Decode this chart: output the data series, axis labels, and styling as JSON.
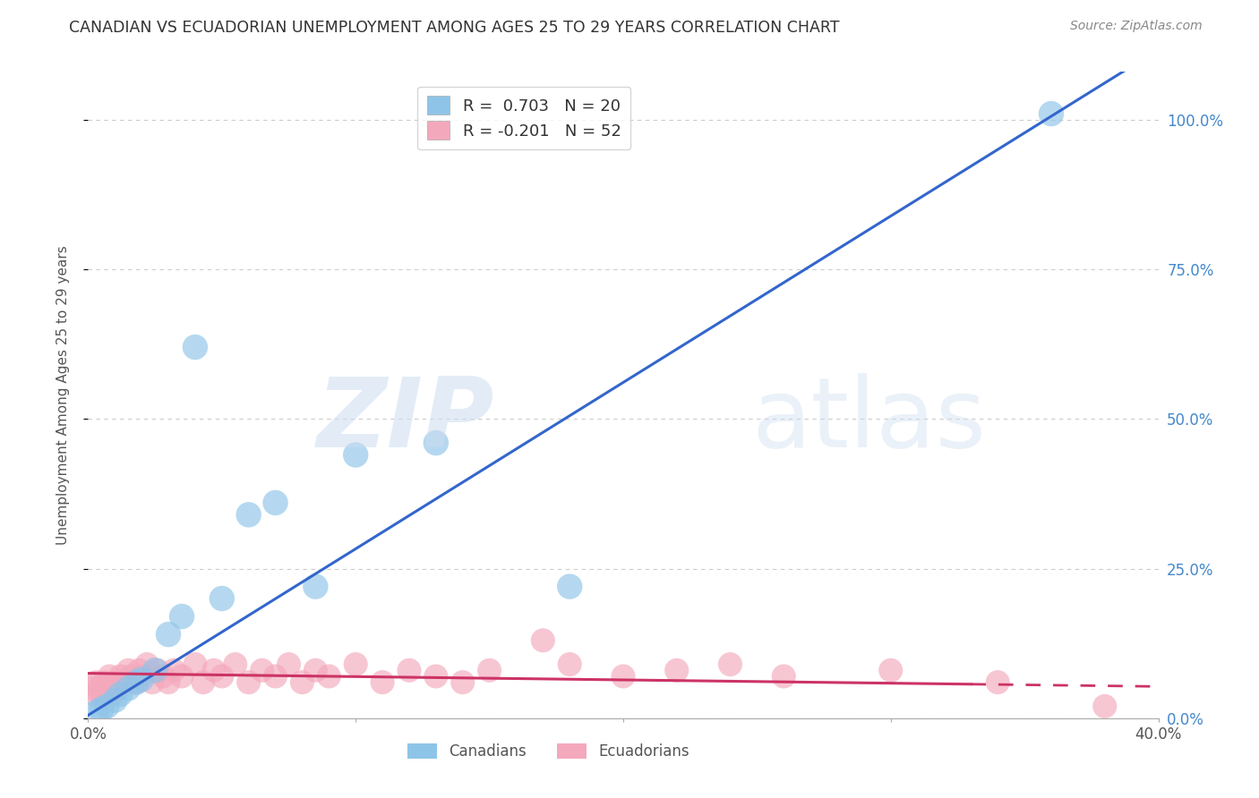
{
  "title": "CANADIAN VS ECUADORIAN UNEMPLOYMENT AMONG AGES 25 TO 29 YEARS CORRELATION CHART",
  "source": "Source: ZipAtlas.com",
  "xlim": [
    0.0,
    0.4
  ],
  "ylim": [
    -0.02,
    1.08
  ],
  "plot_ylim": [
    0.0,
    1.08
  ],
  "watermark_zip": "ZIP",
  "watermark_atlas": "atlas",
  "legend_canadian": "R =  0.703   N = 20",
  "legend_ecuadorian": "R = -0.201   N = 52",
  "canadian_color": "#8ec4e8",
  "ecuadorian_color": "#f4a8bc",
  "regression_canadian_color": "#3366cc",
  "regression_ecuadorian_color": "#cc3366",
  "can_x": [
    0.003,
    0.005,
    0.007,
    0.01,
    0.012,
    0.015,
    0.018,
    0.02,
    0.025,
    0.03,
    0.035,
    0.04,
    0.05,
    0.06,
    0.07,
    0.085,
    0.1,
    0.13,
    0.18,
    0.36
  ],
  "can_y": [
    0.01,
    0.015,
    0.02,
    0.03,
    0.04,
    0.05,
    0.06,
    0.065,
    0.08,
    0.14,
    0.17,
    0.62,
    0.2,
    0.34,
    0.36,
    0.22,
    0.44,
    0.46,
    0.22,
    1.01
  ],
  "ecu_x": [
    0.001,
    0.002,
    0.003,
    0.004,
    0.005,
    0.006,
    0.007,
    0.008,
    0.009,
    0.01,
    0.011,
    0.012,
    0.013,
    0.015,
    0.016,
    0.018,
    0.019,
    0.02,
    0.022,
    0.024,
    0.026,
    0.028,
    0.03,
    0.032,
    0.035,
    0.04,
    0.043,
    0.047,
    0.05,
    0.055,
    0.06,
    0.065,
    0.07,
    0.075,
    0.08,
    0.085,
    0.09,
    0.1,
    0.11,
    0.12,
    0.13,
    0.14,
    0.15,
    0.17,
    0.18,
    0.2,
    0.22,
    0.24,
    0.26,
    0.3,
    0.34,
    0.38
  ],
  "ecu_y": [
    0.05,
    0.04,
    0.06,
    0.05,
    0.04,
    0.06,
    0.05,
    0.07,
    0.04,
    0.06,
    0.05,
    0.07,
    0.06,
    0.08,
    0.07,
    0.06,
    0.08,
    0.07,
    0.09,
    0.06,
    0.08,
    0.07,
    0.06,
    0.08,
    0.07,
    0.09,
    0.06,
    0.08,
    0.07,
    0.09,
    0.06,
    0.08,
    0.07,
    0.09,
    0.06,
    0.08,
    0.07,
    0.09,
    0.06,
    0.08,
    0.07,
    0.06,
    0.08,
    0.13,
    0.09,
    0.07,
    0.08,
    0.09,
    0.07,
    0.08,
    0.06,
    0.02
  ],
  "background_color": "#ffffff",
  "grid_color": "#cccccc",
  "ytick_vals": [
    0.0,
    0.25,
    0.5,
    0.75,
    1.0
  ],
  "ytick_labels": [
    "0.0%",
    "25.0%",
    "50.0%",
    "75.0%",
    "100.0%"
  ]
}
